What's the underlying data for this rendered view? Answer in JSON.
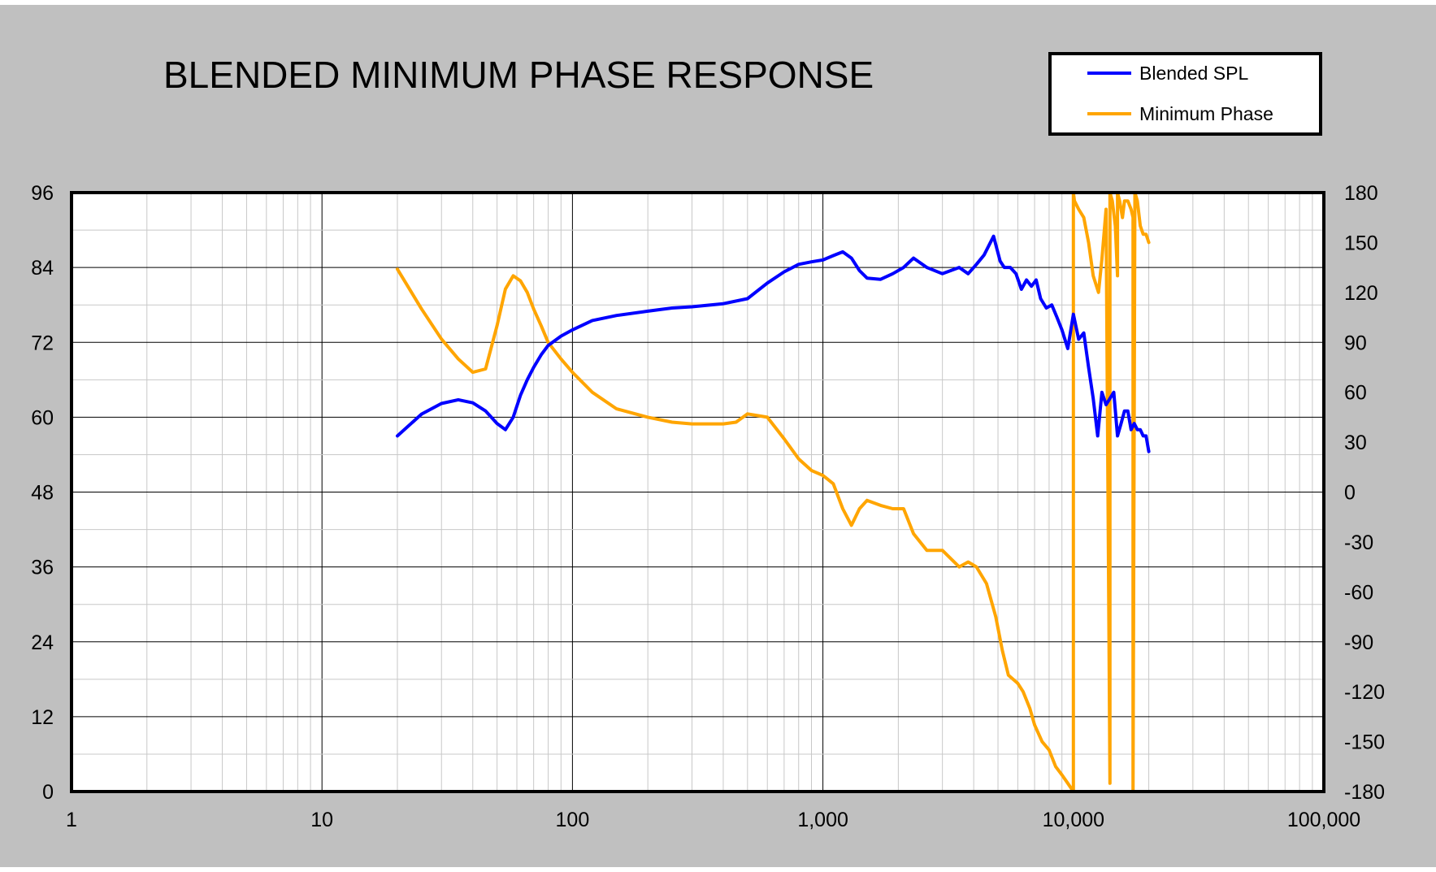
{
  "chart_data": {
    "type": "line",
    "title": "BLENDED MINIMUM PHASE RESPONSE",
    "x_scale": "log",
    "xlim": [
      1,
      100000
    ],
    "x_ticks": [
      "1",
      "10",
      "100",
      "1,000",
      "10,000",
      "100,000"
    ],
    "y_left_lim": [
      0,
      96
    ],
    "y_left_ticks": [
      "96",
      "84",
      "72",
      "60",
      "48",
      "36",
      "24",
      "12",
      "0"
    ],
    "y_right_lim": [
      -180,
      180
    ],
    "y_right_ticks": [
      "180",
      "150",
      "120",
      "90",
      "60",
      "30",
      "0",
      "-30",
      "-60",
      "-90",
      "-120",
      "-150",
      "-180"
    ],
    "grid": true,
    "legend_position": "top-right",
    "colors": {
      "background": "#c0c0c0",
      "plot": "#ffffff",
      "spl": "#0000ff",
      "phase": "#ffa500"
    },
    "series": [
      {
        "name": "Blended SPL",
        "axis": "left",
        "color": "#0000ff",
        "x": [
          20,
          25,
          30,
          35,
          40,
          45,
          50,
          54,
          58,
          62,
          66,
          70,
          75,
          80,
          90,
          100,
          120,
          150,
          200,
          250,
          300,
          400,
          500,
          600,
          700,
          800,
          900,
          1000,
          1100,
          1200,
          1300,
          1400,
          1500,
          1700,
          1900,
          2100,
          2300,
          2600,
          3000,
          3500,
          3800,
          4100,
          4400,
          4800,
          5100,
          5300,
          5600,
          5900,
          6200,
          6500,
          6800,
          7100,
          7400,
          7800,
          8200,
          8600,
          9000,
          9500,
          10000,
          10500,
          11000,
          11500,
          12000,
          12500,
          13000,
          13500,
          14000,
          14500,
          15000,
          15500,
          16000,
          16500,
          17000,
          17500,
          18000,
          18500,
          19000,
          19500,
          20000
        ],
        "values": [
          57,
          60.5,
          62.2,
          62.8,
          62.3,
          61,
          59,
          58,
          60,
          63.5,
          66,
          68,
          70,
          71.5,
          73,
          74,
          75.5,
          76.3,
          77,
          77.5,
          77.7,
          78.2,
          79,
          81.5,
          83.3,
          84.5,
          84.9,
          85.2,
          85.9,
          86.5,
          85.5,
          83.5,
          82.3,
          82.1,
          83,
          84,
          85.5,
          84,
          83,
          84,
          83,
          84.5,
          86,
          89,
          85,
          84,
          84,
          83,
          80.5,
          82,
          81,
          82,
          79,
          77.5,
          78,
          76,
          74,
          71,
          76.5,
          72.5,
          73.5,
          68,
          63,
          57,
          64,
          62,
          63,
          64,
          57,
          59,
          61,
          61,
          58,
          59,
          58,
          58,
          57,
          57,
          54.5
        ]
      },
      {
        "name": "Minimum Phase",
        "axis": "right",
        "color": "#ffa500",
        "x": [
          20,
          25,
          30,
          35,
          40,
          45,
          50,
          54,
          58,
          62,
          66,
          70,
          75,
          80,
          90,
          100,
          120,
          150,
          200,
          250,
          300,
          350,
          400,
          450,
          500,
          600,
          700,
          800,
          900,
          1000,
          1100,
          1200,
          1300,
          1400,
          1500,
          1700,
          1900,
          2100,
          2300,
          2600,
          3000,
          3500,
          3800,
          4100,
          4500,
          4900,
          5200,
          5500,
          6000,
          6300,
          6700,
          7000,
          7500,
          8000,
          8500,
          9000,
          9500,
          10000,
          10001,
          10100,
          10500,
          11000,
          11500,
          12000,
          12600,
          13000,
          13500,
          14000,
          14001,
          14300,
          14700,
          15000,
          15001,
          15300,
          15700,
          16000,
          16500,
          17000,
          17300,
          17301,
          17600,
          18000,
          18500,
          19000,
          19500,
          20000
        ],
        "values": [
          134,
          110,
          92,
          80,
          72,
          74,
          100,
          122,
          130,
          127,
          120,
          110,
          100,
          90,
          80,
          72,
          60,
          50,
          45,
          42,
          41,
          41,
          41,
          42,
          47,
          45,
          32,
          20,
          13,
          10,
          5,
          -10,
          -20,
          -10,
          -5,
          -8,
          -10,
          -10,
          -25,
          -35,
          -35,
          -45,
          -42,
          -45,
          -55,
          -75,
          -95,
          -110,
          -115,
          -120,
          -130,
          -140,
          -150,
          -155,
          -165,
          -170,
          -175,
          -180,
          180,
          175,
          170,
          165,
          150,
          130,
          120,
          140,
          170,
          -175,
          180,
          175,
          160,
          130,
          180,
          175,
          165,
          175,
          175,
          170,
          165,
          -180,
          180,
          175,
          160,
          155,
          155,
          150
        ]
      }
    ]
  }
}
